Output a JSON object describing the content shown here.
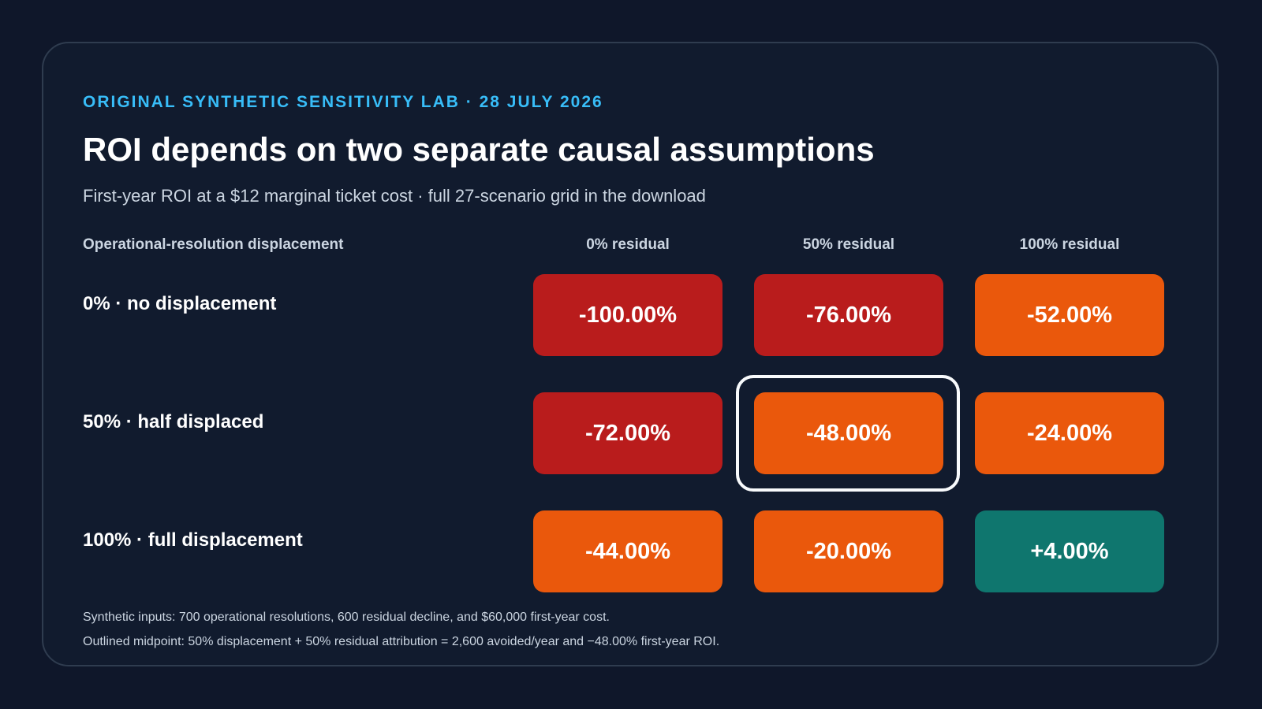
{
  "header": {
    "eyebrow": "ORIGINAL SYNTHETIC SENSITIVITY LAB · 28 JULY 2026",
    "title": "ROI depends on two separate causal assumptions",
    "subtitle": "First-year ROI at a $12 marginal ticket cost · full 27-scenario grid in the download"
  },
  "chart_data": {
    "type": "heatmap",
    "title": "ROI depends on two separate causal assumptions",
    "subtitle": "First-year ROI at a $12 marginal ticket cost · full 27-scenario grid in the download",
    "row_axis_label": "Operational-resolution displacement",
    "columns": [
      "0% residual",
      "50% residual",
      "100% residual"
    ],
    "rows": [
      "0% · no displacement",
      "50% · half displaced",
      "100% · full displacement"
    ],
    "values": [
      [
        -100.0,
        -76.0,
        -52.0
      ],
      [
        -72.0,
        -48.0,
        -24.0
      ],
      [
        -44.0,
        -20.0,
        4.0
      ]
    ],
    "labels": [
      [
        "-100.00%",
        "-76.00%",
        "-52.00%"
      ],
      [
        "-72.00%",
        "-48.00%",
        "-24.00%"
      ],
      [
        "-44.00%",
        "-20.00%",
        "+4.00%"
      ]
    ],
    "highlighted_cell": {
      "row": 1,
      "col": 1
    },
    "colors": {
      "strong_negative": "#b91c1c",
      "negative": "#ea580c",
      "positive": "#0f766e",
      "highlight_outline": "#f8fafc"
    }
  },
  "footnotes": [
    "Synthetic inputs: 700 operational resolutions, 600 residual decline, and $60,000 first-year cost.",
    "Outlined midpoint: 50% displacement + 50% residual attribution = 2,600 avoided/year and −48.00% first-year ROI."
  ]
}
